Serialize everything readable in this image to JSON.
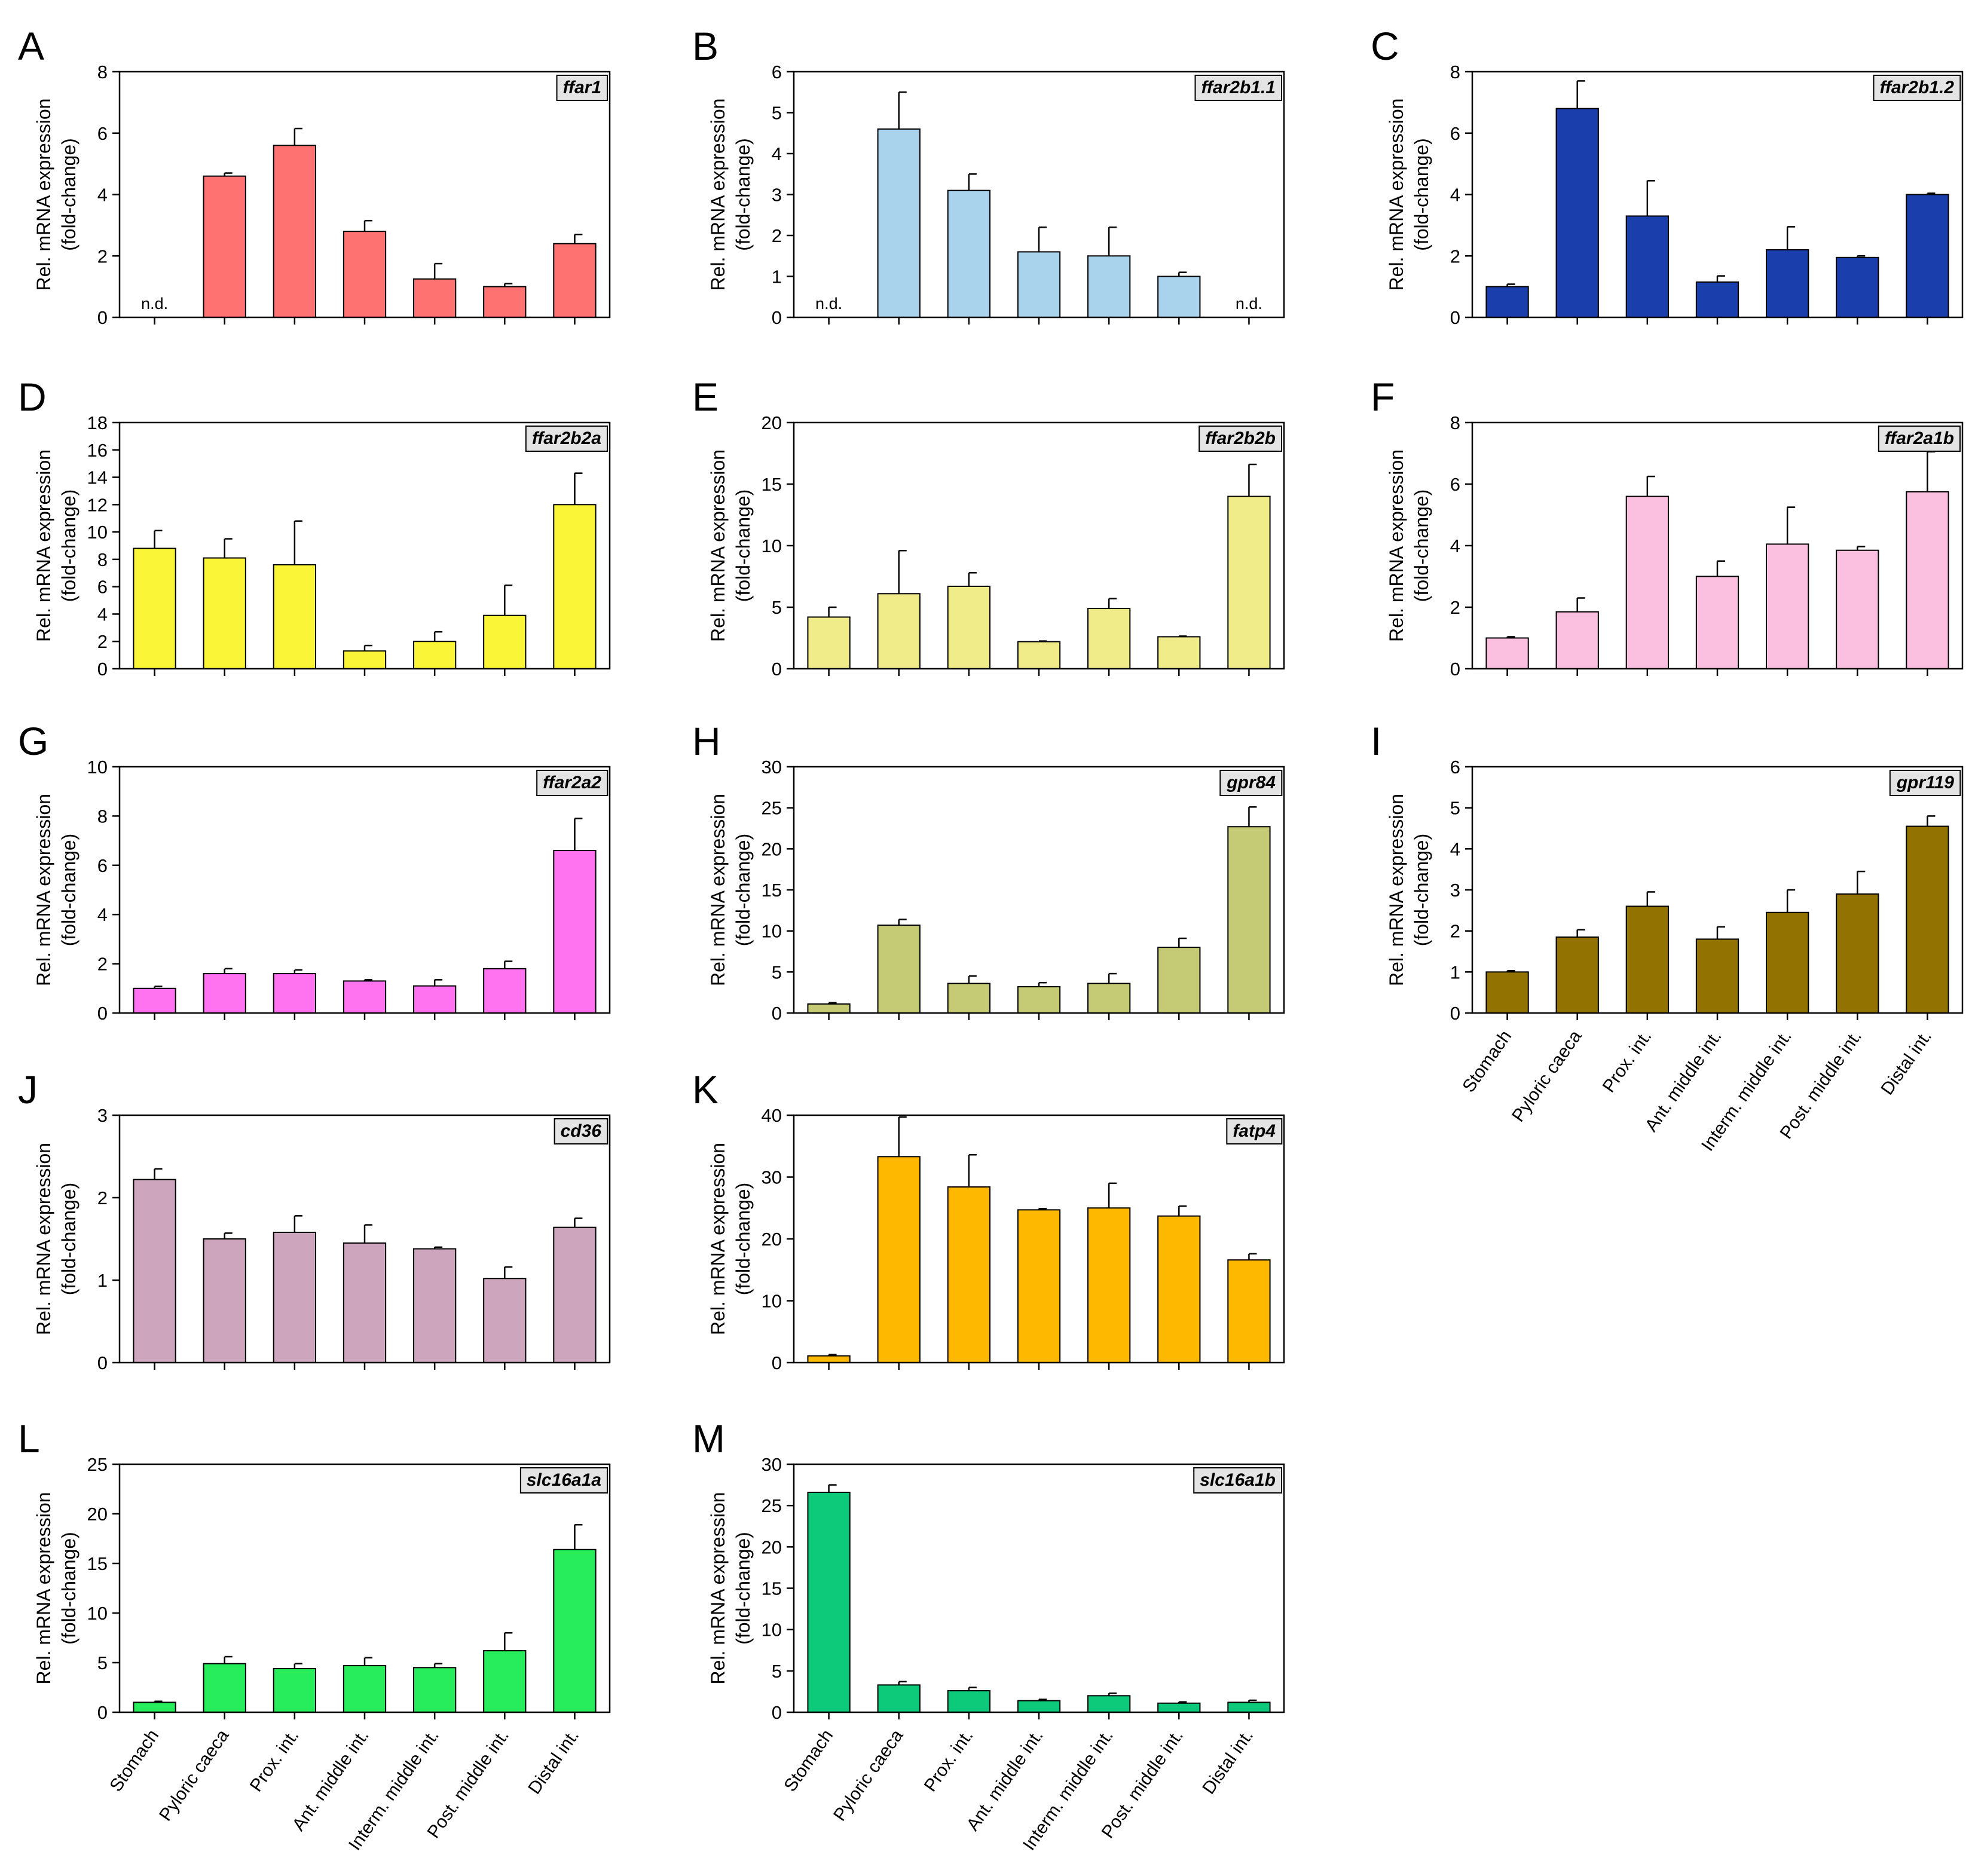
{
  "figure": {
    "categories": [
      "Stomach",
      "Pyloric caeca",
      "Prox. int.",
      "Ant. middle int.",
      "Interm. middle int.",
      "Post. middle int.",
      "Distal int."
    ],
    "ylabel_line1": "Rel. mRNA expression",
    "ylabel_line2": "(fold-change)",
    "nd_text": "n.d."
  },
  "chart_data": [
    {
      "panel": "A",
      "gene": "ffar1",
      "type": "bar",
      "color": "#FF7272",
      "ylim": [
        0,
        8
      ],
      "yticks": [
        0,
        2,
        4,
        6,
        8
      ],
      "categories": [
        "Stomach",
        "Pyloric caeca",
        "Prox. int.",
        "Ant. middle int.",
        "Interm. middle int.",
        "Post. middle int.",
        "Distal int."
      ],
      "values": [
        null,
        4.6,
        5.6,
        2.8,
        1.25,
        1.0,
        2.4
      ],
      "errors": [
        null,
        0.1,
        0.55,
        0.35,
        0.5,
        0.1,
        0.3
      ],
      "not_detected": [
        true,
        false,
        false,
        false,
        false,
        false,
        false
      ],
      "ylabel": "Rel. mRNA expression (fold-change)"
    },
    {
      "panel": "B",
      "gene": "ffar2b1.1",
      "type": "bar",
      "color": "#A9D3EC",
      "ylim": [
        0,
        6
      ],
      "yticks": [
        0,
        1,
        2,
        3,
        4,
        5,
        6
      ],
      "categories": [
        "Stomach",
        "Pyloric caeca",
        "Prox. int.",
        "Ant. middle int.",
        "Interm. middle int.",
        "Post. middle int.",
        "Distal int."
      ],
      "values": [
        null,
        4.6,
        3.1,
        1.6,
        1.5,
        1.0,
        null
      ],
      "errors": [
        null,
        0.9,
        0.4,
        0.6,
        0.7,
        0.1,
        null
      ],
      "not_detected": [
        true,
        false,
        false,
        false,
        false,
        false,
        true
      ],
      "ylabel": "Rel. mRNA expression (fold-change)"
    },
    {
      "panel": "C",
      "gene": "ffar2b1.2",
      "type": "bar",
      "color": "#1A3EAB",
      "ylim": [
        0,
        8
      ],
      "yticks": [
        0,
        2,
        4,
        6,
        8
      ],
      "categories": [
        "Stomach",
        "Pyloric caeca",
        "Prox. int.",
        "Ant. middle int.",
        "Interm. middle int.",
        "Post. middle int.",
        "Distal int."
      ],
      "values": [
        1.0,
        6.8,
        3.3,
        1.15,
        2.2,
        1.95,
        4.0
      ],
      "errors": [
        0.08,
        0.9,
        1.15,
        0.2,
        0.75,
        0.05,
        0.04
      ],
      "not_detected": [
        false,
        false,
        false,
        false,
        false,
        false,
        false
      ],
      "ylabel": "Rel. mRNA expression (fold-change)"
    },
    {
      "panel": "D",
      "gene": "ffar2b2a",
      "type": "bar",
      "color": "#FAF537",
      "ylim": [
        0,
        18
      ],
      "yticks": [
        0,
        2,
        4,
        6,
        8,
        10,
        12,
        14,
        16,
        18
      ],
      "categories": [
        "Stomach",
        "Pyloric caeca",
        "Prox. int.",
        "Ant. middle int.",
        "Interm. middle int.",
        "Post. middle int.",
        "Distal int."
      ],
      "values": [
        8.8,
        8.1,
        7.6,
        1.3,
        2.0,
        3.9,
        12.0
      ],
      "errors": [
        1.3,
        1.4,
        3.2,
        0.4,
        0.7,
        2.2,
        2.3
      ],
      "not_detected": [
        false,
        false,
        false,
        false,
        false,
        false,
        false
      ],
      "ylabel": "Rel. mRNA expression (fold-change)"
    },
    {
      "panel": "E",
      "gene": "ffar2b2b",
      "type": "bar",
      "color": "#F1EC8A",
      "ylim": [
        0,
        20
      ],
      "yticks": [
        0,
        5,
        10,
        15,
        20
      ],
      "categories": [
        "Stomach",
        "Pyloric caeca",
        "Prox. int.",
        "Ant. middle int.",
        "Interm. middle int.",
        "Post. middle int.",
        "Distal int."
      ],
      "values": [
        4.2,
        6.1,
        6.7,
        2.2,
        4.9,
        2.6,
        14.0
      ],
      "errors": [
        0.8,
        3.5,
        1.1,
        0.05,
        0.8,
        0.05,
        2.6
      ],
      "not_detected": [
        false,
        false,
        false,
        false,
        false,
        false,
        false
      ],
      "ylabel": "Rel. mRNA expression (fold-change)"
    },
    {
      "panel": "F",
      "gene": "ffar2a1b",
      "type": "bar",
      "color": "#FBBFDF",
      "ylim": [
        0,
        8
      ],
      "yticks": [
        0,
        2,
        4,
        6,
        8
      ],
      "categories": [
        "Stomach",
        "Pyloric caeca",
        "Prox. int.",
        "Ant. middle int.",
        "Interm. middle int.",
        "Post. middle int.",
        "Distal int."
      ],
      "values": [
        1.0,
        1.85,
        5.6,
        3.0,
        4.05,
        3.85,
        5.75
      ],
      "errors": [
        0.04,
        0.45,
        0.65,
        0.5,
        1.2,
        0.12,
        1.3
      ],
      "not_detected": [
        false,
        false,
        false,
        false,
        false,
        false,
        false
      ],
      "ylabel": "Rel. mRNA expression (fold-change)"
    },
    {
      "panel": "G",
      "gene": "ffar2a2",
      "type": "bar",
      "color": "#FF72F0",
      "ylim": [
        0,
        10
      ],
      "yticks": [
        0,
        2,
        4,
        6,
        8,
        10
      ],
      "categories": [
        "Stomach",
        "Pyloric caeca",
        "Prox. int.",
        "Ant. middle int.",
        "Interm. middle int.",
        "Post. middle int.",
        "Distal int."
      ],
      "values": [
        1.0,
        1.6,
        1.6,
        1.3,
        1.1,
        1.8,
        6.6
      ],
      "errors": [
        0.08,
        0.2,
        0.15,
        0.05,
        0.25,
        0.3,
        1.3
      ],
      "not_detected": [
        false,
        false,
        false,
        false,
        false,
        false,
        false
      ],
      "ylabel": "Rel. mRNA expression (fold-change)"
    },
    {
      "panel": "H",
      "gene": "gpr84",
      "type": "bar",
      "color": "#C5CB74",
      "ylim": [
        0,
        30
      ],
      "yticks": [
        0,
        5,
        10,
        15,
        20,
        25,
        30
      ],
      "categories": [
        "Stomach",
        "Pyloric caeca",
        "Prox. int.",
        "Ant. middle int.",
        "Interm. middle int.",
        "Post. middle int.",
        "Distal int."
      ],
      "values": [
        1.1,
        10.7,
        3.6,
        3.2,
        3.6,
        8.0,
        22.7
      ],
      "errors": [
        0.15,
        0.7,
        0.9,
        0.5,
        1.2,
        1.1,
        2.4
      ],
      "not_detected": [
        false,
        false,
        false,
        false,
        false,
        false,
        false
      ],
      "ylabel": "Rel. mRNA expression (fold-change)"
    },
    {
      "panel": "I",
      "gene": "gpr119",
      "type": "bar",
      "color": "#927200",
      "ylim": [
        0,
        6
      ],
      "yticks": [
        0,
        1,
        2,
        3,
        4,
        5,
        6
      ],
      "categories": [
        "Stomach",
        "Pyloric caeca",
        "Prox. int.",
        "Ant. middle int.",
        "Interm. middle int.",
        "Post. middle int.",
        "Distal int."
      ],
      "values": [
        1.0,
        1.85,
        2.6,
        1.8,
        2.45,
        2.9,
        4.55
      ],
      "errors": [
        0.03,
        0.18,
        0.35,
        0.3,
        0.55,
        0.55,
        0.25
      ],
      "not_detected": [
        false,
        false,
        false,
        false,
        false,
        false,
        false
      ],
      "ylabel": "Rel. mRNA expression (fold-change)"
    },
    {
      "panel": "J",
      "gene": "cd36",
      "type": "bar",
      "color": "#CDA6BE",
      "ylim": [
        0,
        3
      ],
      "yticks": [
        0,
        1,
        2,
        3
      ],
      "categories": [
        "Stomach",
        "Pyloric caeca",
        "Prox. int.",
        "Ant. middle int.",
        "Interm. middle int.",
        "Post. middle int.",
        "Distal int."
      ],
      "values": [
        2.22,
        1.5,
        1.58,
        1.45,
        1.38,
        1.02,
        1.64
      ],
      "errors": [
        0.13,
        0.07,
        0.2,
        0.22,
        0.02,
        0.14,
        0.11
      ],
      "not_detected": [
        false,
        false,
        false,
        false,
        false,
        false,
        false
      ],
      "ylabel": "Rel. mRNA expression (fold-change)"
    },
    {
      "panel": "K",
      "gene": "fatp4",
      "type": "bar",
      "color": "#FFB800",
      "ylim": [
        0,
        40
      ],
      "yticks": [
        0,
        10,
        20,
        30,
        40
      ],
      "categories": [
        "Stomach",
        "Pyloric caeca",
        "Prox. int.",
        "Ant. middle int.",
        "Interm. middle int.",
        "Post. middle int.",
        "Distal int."
      ],
      "values": [
        1.1,
        33.3,
        28.4,
        24.7,
        25.0,
        23.7,
        16.6
      ],
      "errors": [
        0.2,
        6.4,
        5.2,
        0.2,
        4.0,
        1.6,
        1.0
      ],
      "not_detected": [
        false,
        false,
        false,
        false,
        false,
        false,
        false
      ],
      "ylabel": "Rel. mRNA expression (fold-change)"
    },
    {
      "panel": "L",
      "gene": "slc16a1a",
      "type": "bar",
      "color": "#27EC5B",
      "ylim": [
        0,
        25
      ],
      "yticks": [
        0,
        5,
        10,
        15,
        20,
        25
      ],
      "categories": [
        "Stomach",
        "Pyloric caeca",
        "Prox. int.",
        "Ant. middle int.",
        "Interm. middle int.",
        "Post. middle int.",
        "Distal int."
      ],
      "values": [
        1.0,
        4.9,
        4.4,
        4.7,
        4.5,
        6.2,
        16.4
      ],
      "errors": [
        0.1,
        0.7,
        0.5,
        0.8,
        0.4,
        1.8,
        2.5
      ],
      "not_detected": [
        false,
        false,
        false,
        false,
        false,
        false,
        false
      ],
      "ylabel": "Rel. mRNA expression (fold-change)"
    },
    {
      "panel": "M",
      "gene": "slc16a1b",
      "type": "bar",
      "color": "#0DC97A",
      "ylim": [
        0,
        30
      ],
      "yticks": [
        0,
        5,
        10,
        15,
        20,
        25,
        30
      ],
      "categories": [
        "Stomach",
        "Pyloric caeca",
        "Prox. int.",
        "Ant. middle int.",
        "Interm. middle int.",
        "Post. middle int.",
        "Distal int."
      ],
      "values": [
        26.6,
        3.3,
        2.6,
        1.4,
        2.0,
        1.1,
        1.2
      ],
      "errors": [
        0.9,
        0.4,
        0.4,
        0.15,
        0.3,
        0.15,
        0.25
      ],
      "not_detected": [
        false,
        false,
        false,
        false,
        false,
        false,
        false
      ],
      "ylabel": "Rel. mRNA expression (fold-change)"
    }
  ]
}
